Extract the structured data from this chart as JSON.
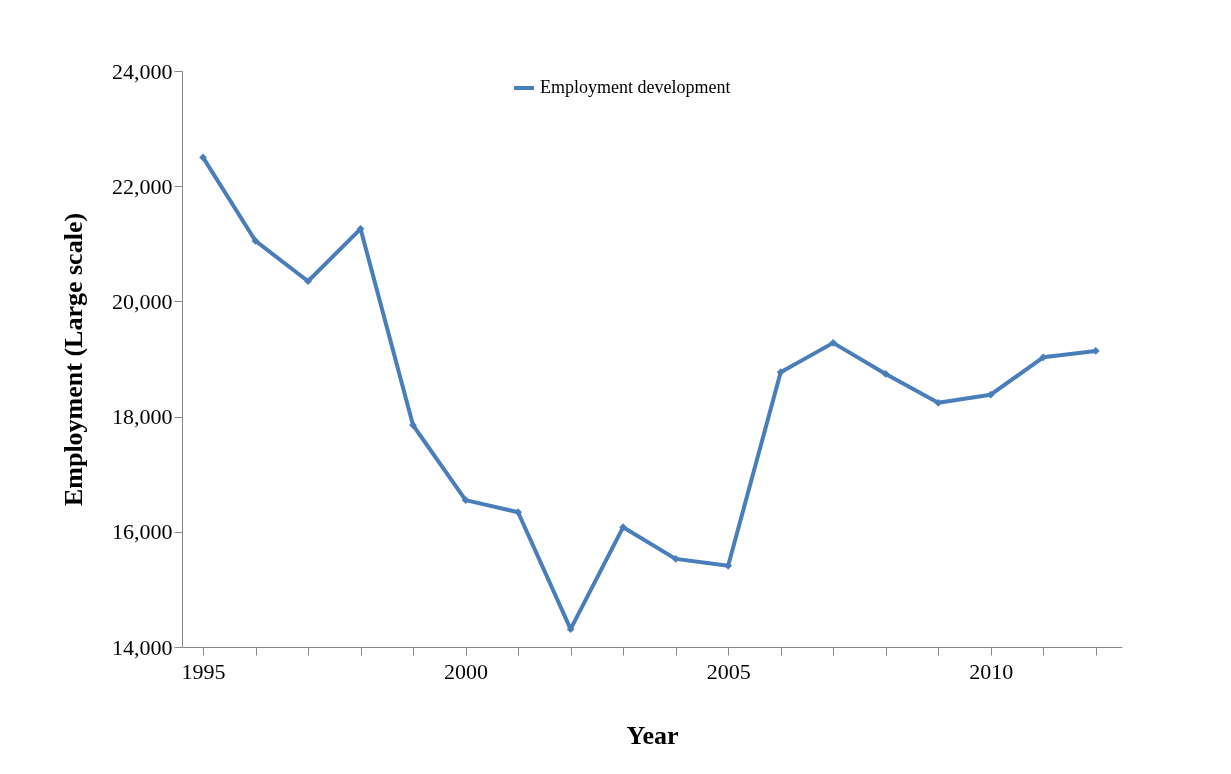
{
  "chart_data": {
    "type": "line",
    "xlabel": "Year",
    "ylabel": "Employment (Large scale)",
    "x": [
      1995,
      1996,
      1997,
      1998,
      1999,
      2000,
      2001,
      2002,
      2003,
      2004,
      2005,
      2006,
      2007,
      2008,
      2009,
      2010,
      2011,
      2012
    ],
    "series": [
      {
        "name": "Employment development",
        "color": "#4a7ebb",
        "values": [
          22500,
          21050,
          20350,
          21260,
          17850,
          16550,
          16340,
          14310,
          16080,
          15530,
          15410,
          18770,
          19280,
          18740,
          18240,
          18380,
          19030,
          19140
        ]
      }
    ],
    "xlim": [
      1994.6,
      2012.5
    ],
    "xticks": [
      1995,
      {
        "value": 1996,
        "label": null
      },
      {
        "value": 1997,
        "label": null
      },
      {
        "value": 1998,
        "label": null
      },
      {
        "value": 1999,
        "label": null
      },
      2000,
      {
        "value": 2001,
        "label": null
      },
      {
        "value": 2002,
        "label": null
      },
      {
        "value": 2003,
        "label": null
      },
      {
        "value": 2004,
        "label": null
      },
      2005,
      {
        "value": 2006,
        "label": null
      },
      {
        "value": 2007,
        "label": null
      },
      {
        "value": 2008,
        "label": null
      },
      {
        "value": 2009,
        "label": null
      },
      2010,
      {
        "value": 2011,
        "label": null
      },
      {
        "value": 2012,
        "label": null
      }
    ],
    "ylim": [
      14000,
      24000
    ],
    "yticks": [
      {
        "value": 14000,
        "label": "14,000"
      },
      {
        "value": 16000,
        "label": "16,000"
      },
      {
        "value": 18000,
        "label": "18,000"
      },
      {
        "value": 20000,
        "label": "20,000"
      },
      {
        "value": 22000,
        "label": "22,000"
      },
      {
        "value": 24000,
        "label": "24,000"
      }
    ],
    "grid": false,
    "legend": "top",
    "marker": "diamond",
    "line_style": "solid"
  }
}
